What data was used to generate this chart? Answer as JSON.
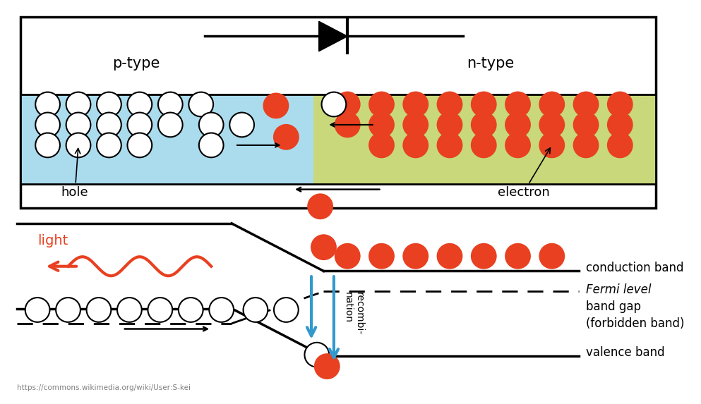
{
  "fig_width": 9.93,
  "fig_height": 5.73,
  "bg_color": "#ffffff",
  "p_type_color": "#aadcee",
  "n_type_color": "#c8d87a",
  "electron_color": "#e84020",
  "hole_fill": "#ffffff",
  "hole_edge": "#000000",
  "light_color": "#e84020",
  "arrow_color": "#3399cc",
  "p_label": "p-type",
  "n_label": "n-type",
  "hole_label": "hole",
  "electron_label": "electron",
  "light_label": "light",
  "conduction_label": "conduction band",
  "fermi_label": "Fermi level",
  "bandgap_label1": "band gap",
  "bandgap_label2": "(forbidden band)",
  "valence_label": "valence band",
  "recombination_label": "recombi-\nnation",
  "url_label": "https://commons.wikimedia.org/wiki/User:S-kei"
}
